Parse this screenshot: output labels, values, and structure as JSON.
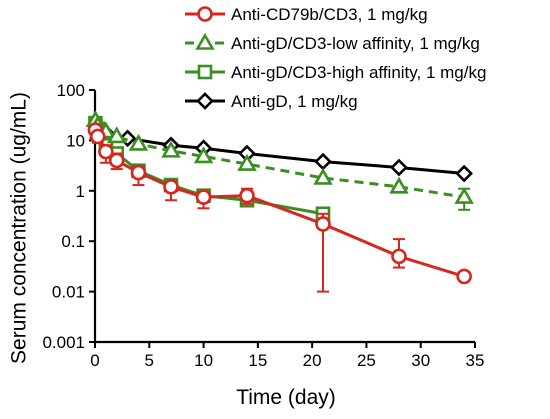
{
  "chart_data": {
    "type": "line",
    "xlabel": "Time (day)",
    "ylabel": "Serum concentration (ug/mL)",
    "xlim": [
      0,
      35
    ],
    "ylim": [
      0.001,
      100
    ],
    "yscale": "log",
    "xticks": [
      0,
      5,
      10,
      15,
      20,
      25,
      30,
      35
    ],
    "yticks": [
      0.001,
      0.01,
      0.1,
      1,
      10,
      100
    ],
    "ytick_labels": [
      "0.001",
      "0.01",
      "0.1",
      "1",
      "10",
      "100"
    ],
    "grid": false,
    "legend_position": "top-right",
    "series": [
      {
        "name": "Anti-CD79b/CD3, 1 mg/kg",
        "color": "#d7261e",
        "marker": "circle",
        "line_style": "solid",
        "x": [
          0.04,
          0.25,
          1,
          2,
          4,
          7,
          10,
          14,
          21,
          28,
          34
        ],
        "y": [
          16,
          12,
          6,
          4,
          2.3,
          1.2,
          0.75,
          0.8,
          0.22,
          0.05,
          0.02
        ],
        "error_low": [
          11,
          9,
          3.6,
          2.7,
          1.3,
          0.65,
          0.45,
          0.55,
          0.01,
          0.03,
          null
        ],
        "error_high": [
          19,
          15,
          8,
          5.5,
          3,
          1.5,
          0.95,
          1.1,
          0.35,
          0.11,
          null
        ]
      },
      {
        "name": "Anti-gD/CD3-low affinity, 1 mg/kg",
        "color": "#3a8f22",
        "marker": "triangle",
        "line_style": "dashed",
        "x": [
          0.04,
          0.25,
          1,
          2,
          4,
          7,
          10,
          14,
          21,
          28,
          34
        ],
        "y": [
          25,
          20,
          15,
          12,
          8.5,
          6.2,
          4.8,
          3.4,
          1.8,
          1.2,
          0.75
        ],
        "error_low": [
          null,
          null,
          null,
          null,
          null,
          null,
          null,
          null,
          null,
          null,
          0.42
        ],
        "error_high": [
          null,
          null,
          null,
          null,
          null,
          null,
          null,
          null,
          null,
          null,
          1.1
        ]
      },
      {
        "name": "Anti-gD/CD3-high affinity, 1 mg/kg",
        "color": "#3a8f22",
        "marker": "square",
        "line_style": "solid",
        "x": [
          0.04,
          0.25,
          1,
          2,
          4,
          7,
          10,
          14,
          21
        ],
        "y": [
          22,
          17,
          8,
          5.5,
          2.5,
          1.3,
          0.8,
          0.65,
          0.35
        ],
        "error_low": [
          null,
          null,
          null,
          null,
          null,
          null,
          null,
          null,
          null
        ],
        "error_high": [
          null,
          null,
          null,
          null,
          null,
          null,
          null,
          null,
          null
        ]
      },
      {
        "name": "Anti-gD, 1 mg/kg",
        "color": "#000000",
        "marker": "diamond",
        "line_style": "solid",
        "x": [
          0.04,
          1,
          3,
          7,
          10,
          14,
          21,
          28,
          34
        ],
        "y": [
          20,
          14,
          11,
          8,
          7,
          5.5,
          3.8,
          2.9,
          2.2
        ],
        "error_low": [
          null,
          null,
          null,
          null,
          null,
          null,
          null,
          null,
          null
        ],
        "error_high": [
          null,
          null,
          null,
          null,
          null,
          null,
          null,
          null,
          null
        ]
      }
    ]
  }
}
